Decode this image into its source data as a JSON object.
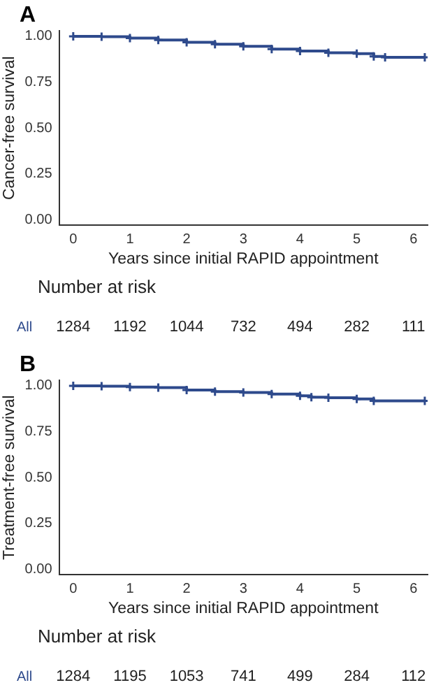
{
  "chart_data": [
    {
      "type": "step",
      "title": "A",
      "xlabel": "Years since initial RAPID appointment",
      "ylabel": "Cancer-free survival",
      "x": [
        0,
        0.5,
        1,
        1.5,
        2,
        2.5,
        3,
        3.5,
        4,
        4.5,
        5,
        5.3,
        5.5,
        6.2
      ],
      "series": [
        {
          "color": "#2e4a8c",
          "values": [
            1.0,
            0.998,
            0.99,
            0.98,
            0.967,
            0.957,
            0.945,
            0.93,
            0.92,
            0.91,
            0.905,
            0.89,
            0.885,
            0.885
          ]
        }
      ],
      "xlim": [
        -0.25,
        6.25
      ],
      "xticks": [
        0,
        1,
        2,
        3,
        4,
        5,
        6
      ],
      "ylim": [
        -0.03,
        1.03
      ],
      "yticks": [
        {
          "value": 0,
          "label": "0.00"
        },
        {
          "value": 0.25,
          "label": "0.25"
        },
        {
          "value": 0.5,
          "label": "0.50"
        },
        {
          "value": 0.75,
          "label": "0.75"
        },
        {
          "value": 1,
          "label": "1.00"
        }
      ],
      "grid": false,
      "legend": false,
      "marker": "cross",
      "line_style": "solid",
      "annotations": [
        "Number at risk",
        "All",
        "1284",
        "1192",
        "1044",
        "732",
        "494",
        "282",
        "111"
      ]
    },
    {
      "type": "step",
      "title": "B",
      "xlabel": "Years since initial RAPID appointment",
      "ylabel": "Treatment-free survival",
      "x": [
        0,
        0.5,
        1,
        1.5,
        2,
        2.5,
        3,
        3.5,
        4,
        4.2,
        4.5,
        5,
        5.3,
        6.2
      ],
      "series": [
        {
          "color": "#2e4a8c",
          "values": [
            1.0,
            0.998,
            0.993,
            0.99,
            0.977,
            0.968,
            0.963,
            0.955,
            0.945,
            0.938,
            0.935,
            0.928,
            0.918,
            0.918
          ]
        }
      ],
      "xlim": [
        -0.25,
        6.25
      ],
      "xticks": [
        0,
        1,
        2,
        3,
        4,
        5,
        6
      ],
      "ylim": [
        -0.03,
        1.03
      ],
      "yticks": [
        {
          "value": 0,
          "label": "0.00"
        },
        {
          "value": 0.25,
          "label": "0.25"
        },
        {
          "value": 0.5,
          "label": "0.50"
        },
        {
          "value": 0.75,
          "label": "0.75"
        },
        {
          "value": 1,
          "label": "1.00"
        }
      ],
      "grid": false,
      "legend": false,
      "marker": "cross",
      "line_style": "solid",
      "annotations": [
        "Number at risk",
        "All",
        "1284",
        "1195",
        "1053",
        "741",
        "499",
        "284",
        "112"
      ]
    }
  ]
}
